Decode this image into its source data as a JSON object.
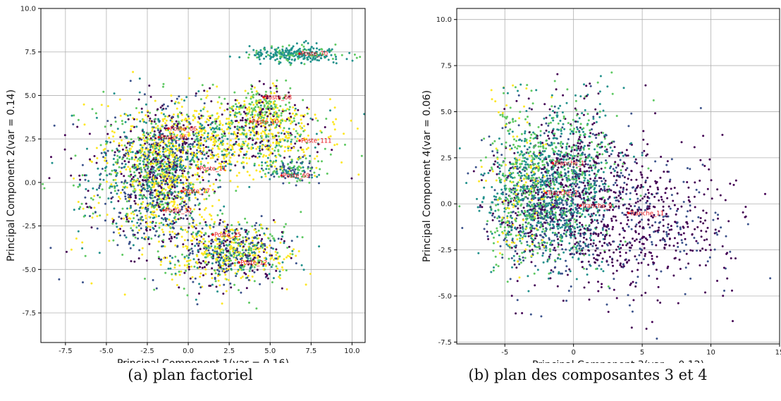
{
  "chart_data": [
    {
      "type": "scatter",
      "caption": "(a) plan factoriel",
      "xlabel": "Principal Component 1(var = 0.16)",
      "ylabel": "Principal Component 2(var = 0.14)",
      "xlim": [
        -9,
        10.8
      ],
      "ylim": [
        -9.2,
        10
      ],
      "xticks": [
        -7.5,
        -5.0,
        -2.5,
        0.0,
        2.5,
        5.0,
        7.5,
        10.0
      ],
      "yticks": [
        -7.5,
        -5.0,
        -2.5,
        0.0,
        2.5,
        5.0,
        7.5,
        10.0
      ],
      "grid": true,
      "colormap": [
        "#440154",
        "#3b528b",
        "#21918c",
        "#5ec962",
        "#fde725"
      ],
      "annotations": [
        {
          "text": "Poste_70",
          "x": 6.8,
          "y": 7.4
        },
        {
          "text": "Poste_68",
          "x": 4.6,
          "y": 4.9
        },
        {
          "text": "Poste_111",
          "x": 6.8,
          "y": 2.4
        },
        {
          "text": "Poste_69",
          "x": 5.7,
          "y": 0.4
        },
        {
          "text": "Poste_11",
          "x": 0.6,
          "y": 0.8
        },
        {
          "text": "Poste_10",
          "x": 3.8,
          "y": 3.5
        },
        {
          "text": "Poste_12",
          "x": 3.1,
          "y": -4.6
        },
        {
          "text": "Poste_25",
          "x": 1.5,
          "y": -3.0
        },
        {
          "text": "Poste_66",
          "x": -1.2,
          "y": 3.1
        },
        {
          "text": "Poste_96",
          "x": -1.8,
          "y": 2.6
        },
        {
          "text": "Poste_77",
          "x": -0.4,
          "y": -0.5
        },
        {
          "text": "Poste_32",
          "x": -1.5,
          "y": -1.6
        }
      ],
      "clusters": [
        {
          "cx": 6.6,
          "cy": 7.4,
          "sx": 1.4,
          "sy": 0.25,
          "n": 260,
          "colors": [
            2,
            2,
            2,
            3
          ]
        },
        {
          "cx": 3.0,
          "cy": 2.5,
          "sx": 3.0,
          "sy": 1.0,
          "n": 900,
          "colors": [
            4,
            4,
            4,
            3,
            2,
            0
          ]
        },
        {
          "cx": -1.5,
          "cy": 0.5,
          "sx": 1.3,
          "sy": 1.8,
          "n": 1200,
          "colors": [
            4,
            2,
            3,
            1,
            0,
            4
          ]
        },
        {
          "cx": 2.5,
          "cy": -4.0,
          "sx": 1.8,
          "sy": 0.9,
          "n": 800,
          "colors": [
            4,
            3,
            0,
            1,
            2,
            4
          ]
        },
        {
          "cx": -3.5,
          "cy": 0.0,
          "sx": 2.2,
          "sy": 2.2,
          "n": 500,
          "colors": [
            1,
            2,
            3,
            0,
            4
          ]
        },
        {
          "cx": 4.5,
          "cy": 4.4,
          "sx": 1.2,
          "sy": 0.6,
          "n": 250,
          "colors": [
            3,
            3,
            4,
            0
          ]
        },
        {
          "cx": 6.2,
          "cy": 0.7,
          "sx": 0.9,
          "sy": 0.35,
          "n": 120,
          "colors": [
            2,
            3,
            1
          ]
        }
      ]
    },
    {
      "type": "scatter",
      "caption": "(b) plan des composantes 3 et 4",
      "xlabel": "Principal Component 3(var = 0.12)",
      "ylabel": "Principal Component 4(var = 0.06)",
      "xlim": [
        -8.5,
        15
      ],
      "ylim": [
        -7.6,
        10.6
      ],
      "xticks": [
        -5,
        0,
        5,
        10,
        15
      ],
      "yticks": [
        -7.5,
        -5.0,
        -2.5,
        0.0,
        2.5,
        5.0,
        7.5,
        10.0
      ],
      "grid": true,
      "colormap": [
        "#440154",
        "#3b528b",
        "#21918c",
        "#5ec962",
        "#fde725"
      ],
      "annotations": [
        {
          "text": "Tranche_1",
          "x": -1.5,
          "y": 2.2
        },
        {
          "text": "Tranche_3",
          "x": -2.0,
          "y": 0.6
        },
        {
          "text": "Tranche_11",
          "x": 4.0,
          "y": -0.5
        },
        {
          "text": "Tranche_9",
          "x": 0.5,
          "y": -0.1
        }
      ],
      "clusters": [
        {
          "cx": -1.5,
          "cy": 0.3,
          "sx": 2.4,
          "sy": 1.9,
          "n": 1500,
          "colors": [
            1,
            2,
            1,
            0,
            3,
            2
          ]
        },
        {
          "cx": 4.5,
          "cy": -1.0,
          "sx": 3.8,
          "sy": 2.0,
          "n": 700,
          "colors": [
            0,
            0,
            0,
            1
          ]
        },
        {
          "cx": -3.8,
          "cy": 1.0,
          "sx": 1.3,
          "sy": 2.3,
          "n": 400,
          "colors": [
            3,
            4,
            3,
            2
          ]
        },
        {
          "cx": 0.5,
          "cy": 3.2,
          "sx": 2.0,
          "sy": 1.5,
          "n": 300,
          "colors": [
            2,
            3,
            0
          ]
        }
      ]
    }
  ]
}
